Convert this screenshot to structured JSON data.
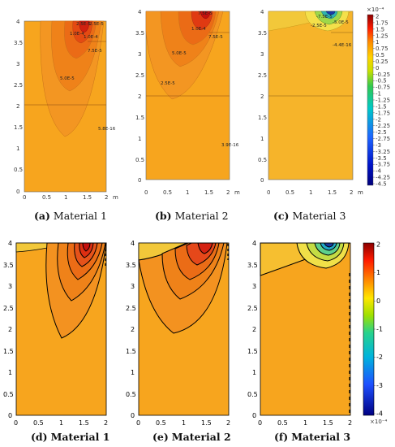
{
  "top_panels": [
    {
      "letter": "(a)",
      "material": "Material 1",
      "contour_labels": [
        "2.5E-5",
        "2.5E-5",
        "1.0E-4",
        "1.0E-4",
        "7.5E-5",
        "5.0E-5",
        "5.8E-16"
      ],
      "x_ticks": [
        "0",
        "0.5",
        "1",
        "1.5",
        "2"
      ],
      "x_unit": "m",
      "y_ticks": [
        "4",
        "3.5",
        "3",
        "2.5",
        "2",
        "1.5",
        "1",
        "0.5",
        "0"
      ]
    },
    {
      "letter": "(b)",
      "material": "Material 2",
      "contour_labels": [
        "7.5E-5",
        "1.0E-4",
        "7.5E-5",
        "5.0E-5",
        "2.5E-5",
        "3.9E-16"
      ],
      "x_ticks": [
        "0",
        "0.5",
        "1",
        "1.5",
        "2"
      ],
      "x_unit": "m",
      "y_ticks": [
        "4",
        "3.5",
        "3",
        "2.5",
        "2",
        "1.5",
        "1",
        "0.5",
        "0"
      ]
    },
    {
      "letter": "(c)",
      "material": "Material 3",
      "contour_labels": [
        "-7.5E-5",
        "-2.5E-5",
        "-5.0E-5",
        "-4.4E-16"
      ],
      "x_ticks": [
        "0",
        "0.5",
        "1",
        "1.5",
        "2"
      ],
      "x_unit": "m",
      "y_ticks": [
        "4",
        "3.5",
        "3",
        "2.5",
        "2",
        "1.5",
        "1",
        "0.5",
        "0"
      ]
    }
  ],
  "top_colorbar": {
    "exponent": "×10⁻⁴",
    "ticks": [
      "2",
      "1.75",
      "1.5",
      "1.25",
      "1",
      "0.75",
      "0.5",
      "0.25",
      "0",
      "-0.25",
      "-0.5",
      "-0.75",
      "-1",
      "-1.25",
      "-1.5",
      "-1.75",
      "-2",
      "-2.25",
      "-2.5",
      "-2.75",
      "-3",
      "-3.25",
      "-3.5",
      "-3.75",
      "-4",
      "-4.25",
      "-4.5"
    ]
  },
  "bottom_panels": [
    {
      "letter": "(d)",
      "material": "Material 1",
      "x_ticks": [
        "0",
        "0.5",
        "1",
        "1.5",
        "2"
      ],
      "y_ticks": [
        "4",
        "3.5",
        "3",
        "2.5",
        "2",
        "1.5",
        "1",
        "0.5",
        "0"
      ]
    },
    {
      "letter": "(e)",
      "material": "Material 2",
      "x_ticks": [
        "0",
        "0.5",
        "1",
        "1.5",
        "2"
      ],
      "y_ticks": [
        "4",
        "3.5",
        "3",
        "2.5",
        "2",
        "1.5",
        "1",
        "0.5",
        "0"
      ]
    },
    {
      "letter": "(f)",
      "material": "Material 3",
      "x_ticks": [
        "0",
        "0.5",
        "1",
        "1.5",
        "2"
      ],
      "y_ticks": [
        "4",
        "3.5",
        "3",
        "2.5",
        "2",
        "1.5",
        "1",
        "0.5",
        "0"
      ]
    }
  ],
  "bottom_colorbar": {
    "exponent": "×10⁻⁴",
    "ticks": [
      "2",
      "1",
      "0",
      "-1",
      "-2",
      "-3",
      "-4"
    ]
  },
  "colors": {
    "background_field": "#f7a51e",
    "mid_orange": "#f28a1a",
    "deep_orange": "#ec6a14",
    "hot_red": "#e03512",
    "peak": "#c5100e",
    "lower_layer_fill": "#f4a320"
  }
}
